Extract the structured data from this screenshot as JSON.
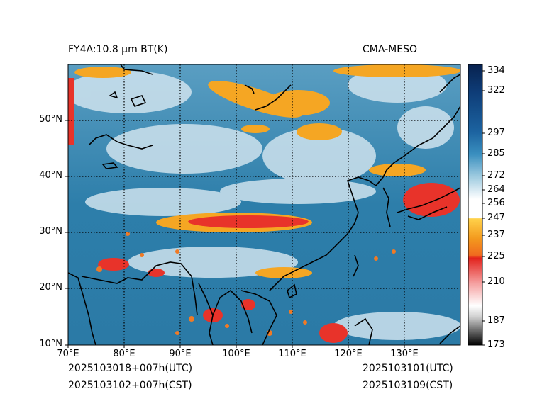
{
  "title_left": "FY4A:10.8 µm BT(K)",
  "title_right": "CMA-MESO",
  "footer": {
    "init_utc": "2025103018+007h(UTC)",
    "init_cst": "2025103102+007h(CST)",
    "valid_utc": "2025103101(UTC)",
    "valid_cst": "2025103109(CST)"
  },
  "lat_labels": [
    "50°N",
    "40°N",
    "30°N",
    "20°N",
    "10°N"
  ],
  "lon_labels": [
    "70°E",
    "80°E",
    "90°E",
    "100°E",
    "110°E",
    "120°E",
    "130°E"
  ],
  "colorbar": {
    "ticks": [
      "334",
      "322",
      "297",
      "285",
      "272",
      "264",
      "256",
      "247",
      "237",
      "225",
      "210",
      "187",
      "173"
    ],
    "tick_values": [
      334,
      322,
      297,
      285,
      272,
      264,
      256,
      247,
      237,
      225,
      210,
      187,
      173
    ],
    "range": [
      173,
      339
    ]
  },
  "colors": {
    "ocean": "#2f7fa9",
    "cloud_white": "#eef4f8",
    "cold_cloud": "#f5a623",
    "deep_convection": "#e8332a",
    "coastline": "#000000"
  }
}
